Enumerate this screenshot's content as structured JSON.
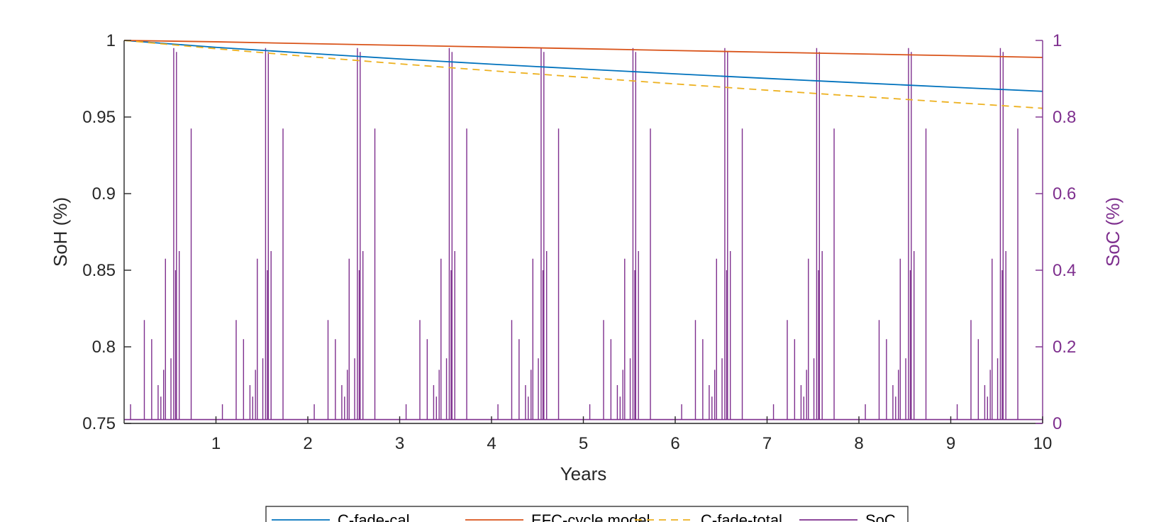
{
  "chart_data": {
    "type": "line",
    "xlabel": "Years",
    "ylabel_left": "SoH (%)",
    "ylabel_right": "SoC (%)",
    "xlim": [
      0,
      10
    ],
    "ylim_left": [
      0.75,
      1
    ],
    "ylim_right": [
      0,
      1
    ],
    "x_ticks": [
      1,
      2,
      3,
      4,
      5,
      6,
      7,
      8,
      9,
      10
    ],
    "y_left_ticks": [
      "0.75",
      "0.8",
      "0.85",
      "0.9",
      "0.95",
      "1"
    ],
    "y_right_ticks": [
      "0",
      "0.2",
      "0.4",
      "0.6",
      "0.8",
      "1"
    ],
    "grid": false,
    "legend_position": "bottom-center",
    "series": [
      {
        "name": "C-fade-cal",
        "axis": "left",
        "style": "solid",
        "color": "#0072bd",
        "x": [
          0,
          1,
          2,
          3,
          4,
          5,
          6,
          7,
          8,
          9,
          10
        ],
        "y": [
          1.0,
          0.9955,
          0.9916,
          0.9879,
          0.9845,
          0.9813,
          0.9782,
          0.9752,
          0.9723,
          0.9695,
          0.9668
        ]
      },
      {
        "name": "EFC-cycle model",
        "axis": "left",
        "style": "solid",
        "color": "#d95319",
        "x": [
          0,
          1,
          2,
          3,
          4,
          5,
          6,
          7,
          8,
          9,
          10
        ],
        "y": [
          1.0,
          0.9991,
          0.9979,
          0.9968,
          0.9957,
          0.9946,
          0.9934,
          0.9923,
          0.9912,
          0.9901,
          0.9889
        ]
      },
      {
        "name": "C-fade-total",
        "axis": "left",
        "style": "dashed",
        "color": "#edb120",
        "x": [
          0,
          1,
          2,
          3,
          4,
          5,
          6,
          7,
          8,
          9,
          10
        ],
        "y": [
          1.0,
          0.9946,
          0.9895,
          0.9847,
          0.9802,
          0.9759,
          0.9716,
          0.9675,
          0.9635,
          0.9596,
          0.9557
        ]
      },
      {
        "name": "SoC",
        "axis": "right",
        "style": "spikes",
        "color": "#7e2f8e",
        "baseline": 0.01,
        "annual_spike_offsets": [
          0.07,
          0.22,
          0.3,
          0.37,
          0.4,
          0.43,
          0.45,
          0.51,
          0.54,
          0.56,
          0.57,
          0.6,
          0.73
        ],
        "annual_spike_values": [
          0.05,
          0.27,
          0.22,
          0.1,
          0.07,
          0.14,
          0.43,
          0.17,
          0.98,
          0.4,
          0.97,
          0.45,
          0.77
        ],
        "years": [
          0,
          1,
          2,
          3,
          4,
          5,
          6,
          7,
          8,
          9
        ]
      }
    ]
  }
}
